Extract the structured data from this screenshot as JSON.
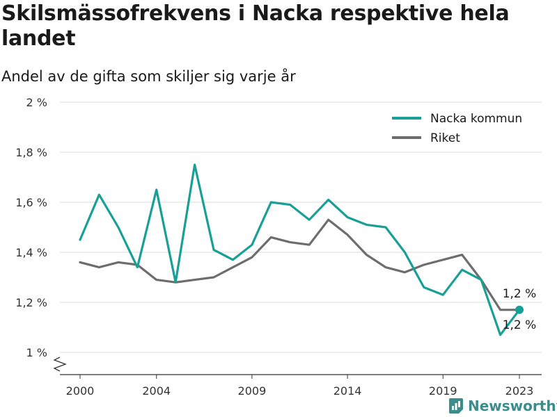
{
  "chart_data": {
    "type": "line",
    "title": "Skilsmässofrekvens i Nacka respektive hela landet",
    "subtitle": "Andel av de gifta som skiljer sig varje år",
    "x": [
      2000,
      2001,
      2002,
      2003,
      2004,
      2005,
      2006,
      2007,
      2008,
      2009,
      2010,
      2011,
      2012,
      2013,
      2014,
      2015,
      2016,
      2017,
      2018,
      2019,
      2020,
      2021,
      2022,
      2023
    ],
    "x_ticks": [
      "2000",
      "2004",
      "2009",
      "2014",
      "2019",
      "2023"
    ],
    "y_ticks": [
      "2 %",
      "1,8 %",
      "1,6 %",
      "1,4 %",
      "1,2 %",
      "1 %"
    ],
    "ylim": [
      1.0,
      2.0
    ],
    "grid": true,
    "legend_position": "top-right",
    "series": [
      {
        "name": "Nacka kommun",
        "color": "#18a096",
        "values": [
          1.45,
          1.63,
          1.5,
          1.34,
          1.65,
          1.28,
          1.75,
          1.41,
          1.37,
          1.43,
          1.6,
          1.59,
          1.53,
          1.61,
          1.54,
          1.51,
          1.5,
          1.4,
          1.26,
          1.23,
          1.33,
          1.29,
          1.07,
          1.17
        ],
        "end_label": "1,2 %"
      },
      {
        "name": "Riket",
        "color": "#6d6d70",
        "values": [
          1.36,
          1.34,
          1.36,
          1.35,
          1.29,
          1.28,
          1.29,
          1.3,
          1.34,
          1.38,
          1.46,
          1.44,
          1.43,
          1.53,
          1.47,
          1.39,
          1.34,
          1.32,
          1.35,
          1.37,
          1.39,
          1.29,
          1.17,
          1.17
        ],
        "end_label": "1,2 %"
      }
    ]
  },
  "brand": {
    "name": "Newsworthy",
    "color": "#3d8c8c"
  }
}
